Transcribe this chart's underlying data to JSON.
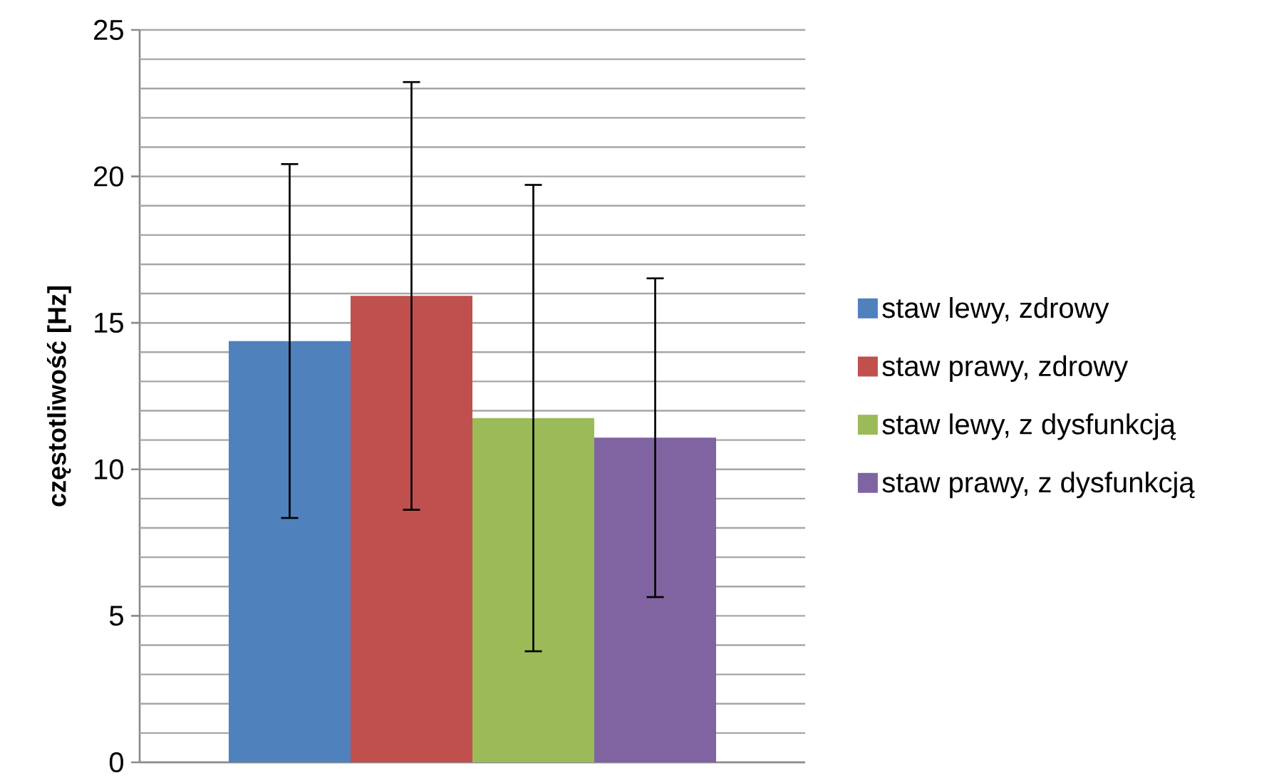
{
  "chart_data": {
    "type": "bar",
    "ylabel": "częstotliwość [Hz]",
    "categories": [
      null
    ],
    "series": [
      {
        "name": "staw lewy, zdrowy",
        "color": "#4f81bd",
        "values": [
          14.38
        ],
        "errors": [
          6.04
        ]
      },
      {
        "name": "staw prawy, zdrowy",
        "color": "#c0504d",
        "values": [
          15.92
        ],
        "errors": [
          7.3
        ]
      },
      {
        "name": "staw lewy, z dysfunkcją",
        "color": "#9bbb59",
        "values": [
          11.75
        ],
        "errors": [
          7.96
        ]
      },
      {
        "name": "staw prawy, z dysfunkcją",
        "color": "#8064a2",
        "values": [
          11.08
        ],
        "errors": [
          5.44
        ]
      }
    ],
    "ylim": [
      0,
      25
    ],
    "yticks": [
      0,
      {
        "value": 1,
        "label": null
      },
      {
        "value": 2,
        "label": null
      },
      {
        "value": 3,
        "label": null
      },
      {
        "value": 4,
        "label": null
      },
      5,
      {
        "value": 6,
        "label": null
      },
      {
        "value": 7,
        "label": null
      },
      {
        "value": 8,
        "label": null
      },
      {
        "value": 9,
        "label": null
      },
      10,
      {
        "value": 11,
        "label": null
      },
      {
        "value": 12,
        "label": null
      },
      {
        "value": 13,
        "label": null
      },
      {
        "value": 14,
        "label": null
      },
      15,
      {
        "value": 16,
        "label": null
      },
      {
        "value": 17,
        "label": null
      },
      {
        "value": 18,
        "label": null
      },
      {
        "value": 19,
        "label": null
      },
      20,
      {
        "value": 21,
        "label": null
      },
      {
        "value": 22,
        "label": null
      },
      {
        "value": 23,
        "label": null
      },
      {
        "value": 24,
        "label": null
      },
      25
    ],
    "grid": "y",
    "legend": "right"
  }
}
